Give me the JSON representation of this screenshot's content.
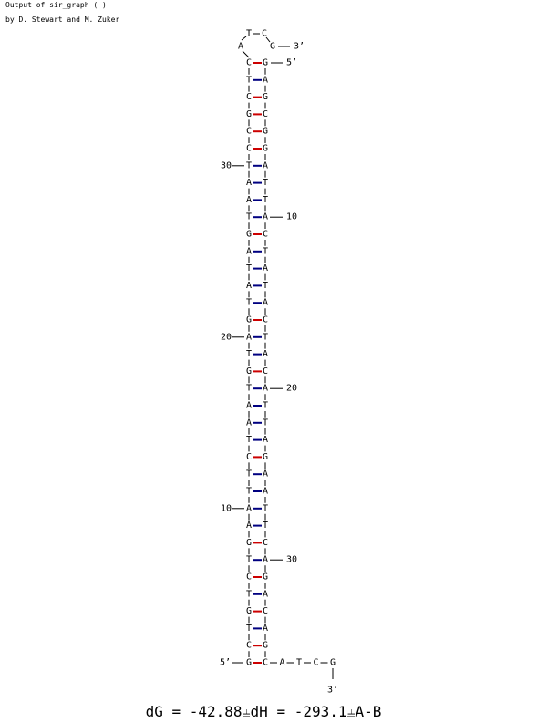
{
  "header": {
    "line1": "Output of sir_graph ( )",
    "line2": "by D. Stewart and M. Zuker"
  },
  "colors": {
    "gc_pair": "#cc0000",
    "at_pair": "#000080",
    "backbone": "#000000"
  },
  "structure": {
    "loop": {
      "top_left": "T",
      "top_right": "C",
      "left": "A",
      "right": "G"
    },
    "pairs": [
      [
        "C",
        "G"
      ],
      [
        "T",
        "A"
      ],
      [
        "C",
        "G"
      ],
      [
        "G",
        "C"
      ],
      [
        "C",
        "G"
      ],
      [
        "C",
        "G"
      ],
      [
        "T",
        "A"
      ],
      [
        "A",
        "T"
      ],
      [
        "A",
        "T"
      ],
      [
        "T",
        "A"
      ],
      [
        "G",
        "C"
      ],
      [
        "A",
        "T"
      ],
      [
        "T",
        "A"
      ],
      [
        "A",
        "T"
      ],
      [
        "T",
        "A"
      ],
      [
        "G",
        "C"
      ],
      [
        "A",
        "T"
      ],
      [
        "T",
        "A"
      ],
      [
        "G",
        "C"
      ],
      [
        "T",
        "A"
      ],
      [
        "A",
        "T"
      ],
      [
        "A",
        "T"
      ],
      [
        "T",
        "A"
      ],
      [
        "C",
        "G"
      ],
      [
        "T",
        "A"
      ],
      [
        "T",
        "A"
      ],
      [
        "A",
        "T"
      ],
      [
        "A",
        "T"
      ],
      [
        "G",
        "C"
      ],
      [
        "T",
        "A"
      ],
      [
        "C",
        "G"
      ],
      [
        "T",
        "A"
      ],
      [
        "G",
        "C"
      ],
      [
        "T",
        "A"
      ],
      [
        "C",
        "G"
      ],
      [
        "G",
        "C"
      ]
    ],
    "tail": [
      "A",
      "T",
      "C",
      "G"
    ],
    "labels": {
      "top_3prime": "3’",
      "top_5prime": "5’",
      "bottom_5prime": "5’",
      "bottom_3prime": "3’",
      "left_ticks": [
        {
          "pair_index": 6,
          "text": "30"
        },
        {
          "pair_index": 16,
          "text": "20"
        },
        {
          "pair_index": 26,
          "text": "10"
        }
      ],
      "right_ticks": [
        {
          "pair_index": 9,
          "text": "10"
        },
        {
          "pair_index": 19,
          "text": "20"
        },
        {
          "pair_index": 29,
          "text": "30"
        }
      ]
    }
  },
  "energy": "dG = -42.88⫨dH = -293.1⫨A-B"
}
